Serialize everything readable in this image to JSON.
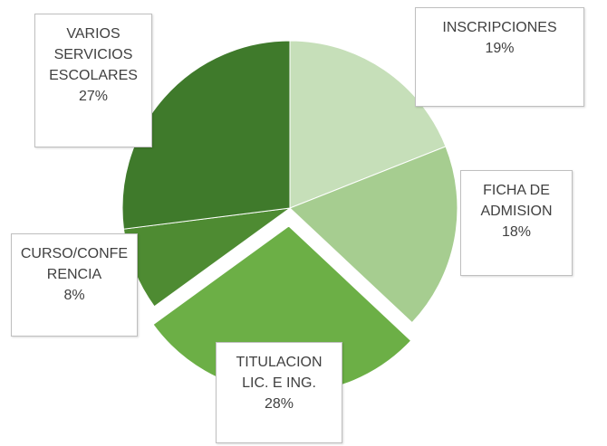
{
  "chart_data": {
    "type": "pie",
    "categories": [
      "INSCRIPCIONES",
      "FICHA DE ADMISION",
      "TITULACION LIC. E ING.",
      "CURSO/CONFERENCIA",
      "VARIOS SERVICIOS ESCOLARES"
    ],
    "values": [
      19,
      18,
      28,
      8,
      27
    ],
    "value_labels": [
      "19%",
      "18%",
      "28%",
      "8%",
      "27%"
    ],
    "colors": [
      "#c6dfb9",
      "#a6cd90",
      "#6caf46",
      "#4e8b32",
      "#3f7a2b"
    ],
    "exploded": [
      false,
      false,
      true,
      false,
      false
    ]
  }
}
